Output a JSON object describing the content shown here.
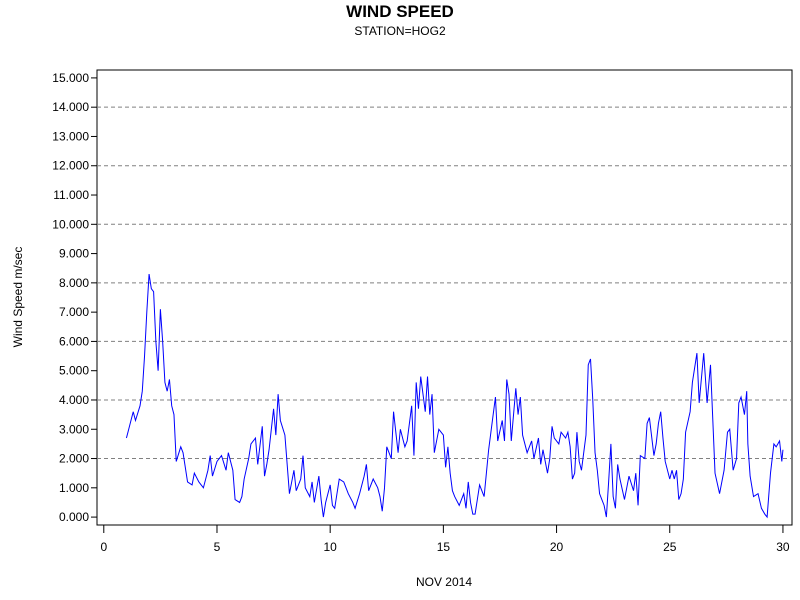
{
  "chart_data": {
    "type": "line",
    "title": "WIND SPEED",
    "subtitle": "STATION=HOG2",
    "xlabel": "NOV 2014",
    "ylabel": "Wind Speed m/sec",
    "xlim": [
      -0.3,
      30.4
    ],
    "ylim": [
      -0.27,
      15.27
    ],
    "xticks": [
      0,
      5,
      10,
      15,
      20,
      25,
      30
    ],
    "yticks": [
      {
        "value": 0,
        "label": "0.000"
      },
      {
        "value": 1,
        "label": "1.000"
      },
      {
        "value": 2,
        "label": "2.000"
      },
      {
        "value": 3,
        "label": "3.000"
      },
      {
        "value": 4,
        "label": "4.000"
      },
      {
        "value": 5,
        "label": "5.000"
      },
      {
        "value": 6,
        "label": "6.000"
      },
      {
        "value": 7,
        "label": "7.000"
      },
      {
        "value": 8,
        "label": "8.000"
      },
      {
        "value": 9,
        "label": "9.000"
      },
      {
        "value": 10,
        "label": "10.000"
      },
      {
        "value": 11,
        "label": "11.000"
      },
      {
        "value": 12,
        "label": "12.000"
      },
      {
        "value": 13,
        "label": "13.000"
      },
      {
        "value": 14,
        "label": "14.000"
      },
      {
        "value": 15,
        "label": "15.000"
      }
    ],
    "ygrid": [
      2,
      4,
      6,
      8,
      10,
      12,
      14
    ],
    "series": [
      {
        "name": "Wind Speed",
        "color": "#0000ff",
        "x": [
          1.0,
          1.2,
          1.3,
          1.4,
          1.6,
          1.7,
          1.8,
          1.9,
          2.0,
          2.1,
          2.2,
          2.3,
          2.4,
          2.5,
          2.6,
          2.7,
          2.8,
          2.9,
          3.0,
          3.1,
          3.2,
          3.4,
          3.5,
          3.7,
          3.9,
          4.0,
          4.2,
          4.4,
          4.6,
          4.7,
          4.8,
          5.0,
          5.2,
          5.4,
          5.5,
          5.7,
          5.8,
          6.0,
          6.1,
          6.2,
          6.4,
          6.5,
          6.7,
          6.8,
          7.0,
          7.1,
          7.2,
          7.3,
          7.5,
          7.6,
          7.7,
          7.8,
          8.0,
          8.1,
          8.2,
          8.4,
          8.5,
          8.7,
          8.8,
          8.9,
          9.1,
          9.2,
          9.3,
          9.5,
          9.6,
          9.7,
          9.8,
          10.0,
          10.1,
          10.2,
          10.4,
          10.6,
          10.8,
          11.0,
          11.1,
          11.3,
          11.5,
          11.6,
          11.7,
          11.9,
          12.1,
          12.2,
          12.3,
          12.4,
          12.5,
          12.7,
          12.8,
          13.0,
          13.1,
          13.3,
          13.4,
          13.6,
          13.7,
          13.8,
          13.9,
          14.0,
          14.2,
          14.3,
          14.4,
          14.5,
          14.6,
          14.8,
          15.0,
          15.1,
          15.2,
          15.3,
          15.4,
          15.5,
          15.7,
          15.9,
          16.0,
          16.1,
          16.2,
          16.3,
          16.4,
          16.5,
          16.6,
          16.8,
          16.9,
          17.0,
          17.2,
          17.3,
          17.4,
          17.6,
          17.7,
          17.8,
          17.9,
          18.0,
          18.2,
          18.3,
          18.4,
          18.5,
          18.7,
          18.9,
          19.0,
          19.2,
          19.3,
          19.4,
          19.6,
          19.7,
          19.8,
          19.9,
          20.1,
          20.2,
          20.4,
          20.5,
          20.6,
          20.7,
          20.8,
          20.9,
          21.0,
          21.1,
          21.3,
          21.4,
          21.5,
          21.6,
          21.7,
          21.8,
          21.9,
          22.0,
          22.1,
          22.2,
          22.3,
          22.4,
          22.5,
          22.6,
          22.7,
          22.8,
          23.0,
          23.1,
          23.2,
          23.4,
          23.5,
          23.6,
          23.7,
          23.9,
          24.0,
          24.1,
          24.3,
          24.4,
          24.5,
          24.6,
          24.7,
          24.8,
          25.0,
          25.1,
          25.2,
          25.3,
          25.4,
          25.5,
          25.6,
          25.7,
          25.9,
          26.0,
          26.2,
          26.3,
          26.5,
          26.65,
          26.8,
          27.0,
          27.2,
          27.4,
          27.55,
          27.65,
          27.8,
          27.95,
          28.05,
          28.15,
          28.3,
          28.4,
          28.45,
          28.55,
          28.7,
          28.9,
          29.05,
          29.2,
          29.3,
          29.45,
          29.6,
          29.7,
          29.85,
          29.95,
          30.0
        ],
        "values": [
          2.7,
          3.3,
          3.6,
          3.3,
          3.8,
          4.3,
          5.5,
          7.0,
          8.3,
          7.8,
          7.7,
          6.0,
          5.0,
          7.1,
          6.0,
          4.6,
          4.3,
          4.7,
          3.8,
          3.5,
          1.9,
          2.4,
          2.2,
          1.2,
          1.1,
          1.5,
          1.2,
          1.0,
          1.6,
          2.1,
          1.4,
          1.9,
          2.1,
          1.6,
          2.2,
          1.6,
          0.6,
          0.5,
          0.7,
          1.3,
          2.0,
          2.5,
          2.7,
          1.8,
          3.1,
          1.4,
          1.8,
          2.3,
          3.7,
          2.8,
          4.2,
          3.3,
          2.8,
          1.8,
          0.8,
          1.6,
          0.9,
          1.3,
          2.1,
          1.0,
          0.7,
          1.2,
          0.5,
          1.4,
          0.6,
          0.0,
          0.5,
          1.1,
          0.4,
          0.3,
          1.3,
          1.2,
          0.8,
          0.5,
          0.3,
          0.8,
          1.4,
          1.8,
          0.9,
          1.3,
          1.0,
          0.7,
          0.2,
          1.0,
          2.4,
          2.0,
          3.6,
          2.2,
          3.0,
          2.4,
          2.6,
          3.8,
          2.1,
          4.6,
          3.7,
          4.8,
          3.6,
          4.8,
          3.5,
          4.2,
          2.2,
          3.0,
          2.8,
          1.7,
          2.4,
          1.5,
          0.9,
          0.7,
          0.4,
          0.8,
          0.3,
          1.2,
          0.5,
          0.1,
          0.1,
          0.6,
          1.1,
          0.7,
          1.5,
          2.3,
          3.5,
          4.1,
          2.6,
          3.3,
          2.6,
          4.7,
          4.2,
          2.6,
          4.4,
          3.5,
          4.1,
          2.8,
          2.2,
          2.6,
          2.0,
          2.7,
          1.8,
          2.3,
          1.5,
          2.0,
          3.1,
          2.7,
          2.5,
          2.9,
          2.7,
          2.9,
          2.4,
          1.3,
          1.5,
          2.9,
          1.9,
          1.6,
          2.8,
          5.2,
          5.4,
          4.0,
          2.2,
          1.6,
          0.8,
          0.6,
          0.4,
          0.0,
          1.2,
          2.5,
          0.7,
          0.3,
          1.8,
          1.3,
          0.6,
          1.0,
          1.4,
          0.9,
          1.5,
          0.4,
          2.1,
          2.0,
          3.2,
          3.4,
          2.1,
          2.5,
          3.2,
          3.6,
          2.7,
          1.9,
          1.3,
          1.6,
          1.3,
          1.6,
          0.6,
          0.8,
          1.3,
          2.9,
          3.6,
          4.6,
          5.6,
          3.9,
          5.6,
          3.9,
          5.2,
          1.5,
          0.8,
          1.6,
          2.9,
          3.0,
          1.6,
          2.0,
          3.9,
          4.1,
          3.5,
          4.3,
          2.5,
          1.4,
          0.7,
          0.8,
          0.3,
          0.1,
          0.0,
          1.5,
          2.5,
          2.4,
          2.6,
          1.9,
          2.3
        ]
      }
    ]
  }
}
